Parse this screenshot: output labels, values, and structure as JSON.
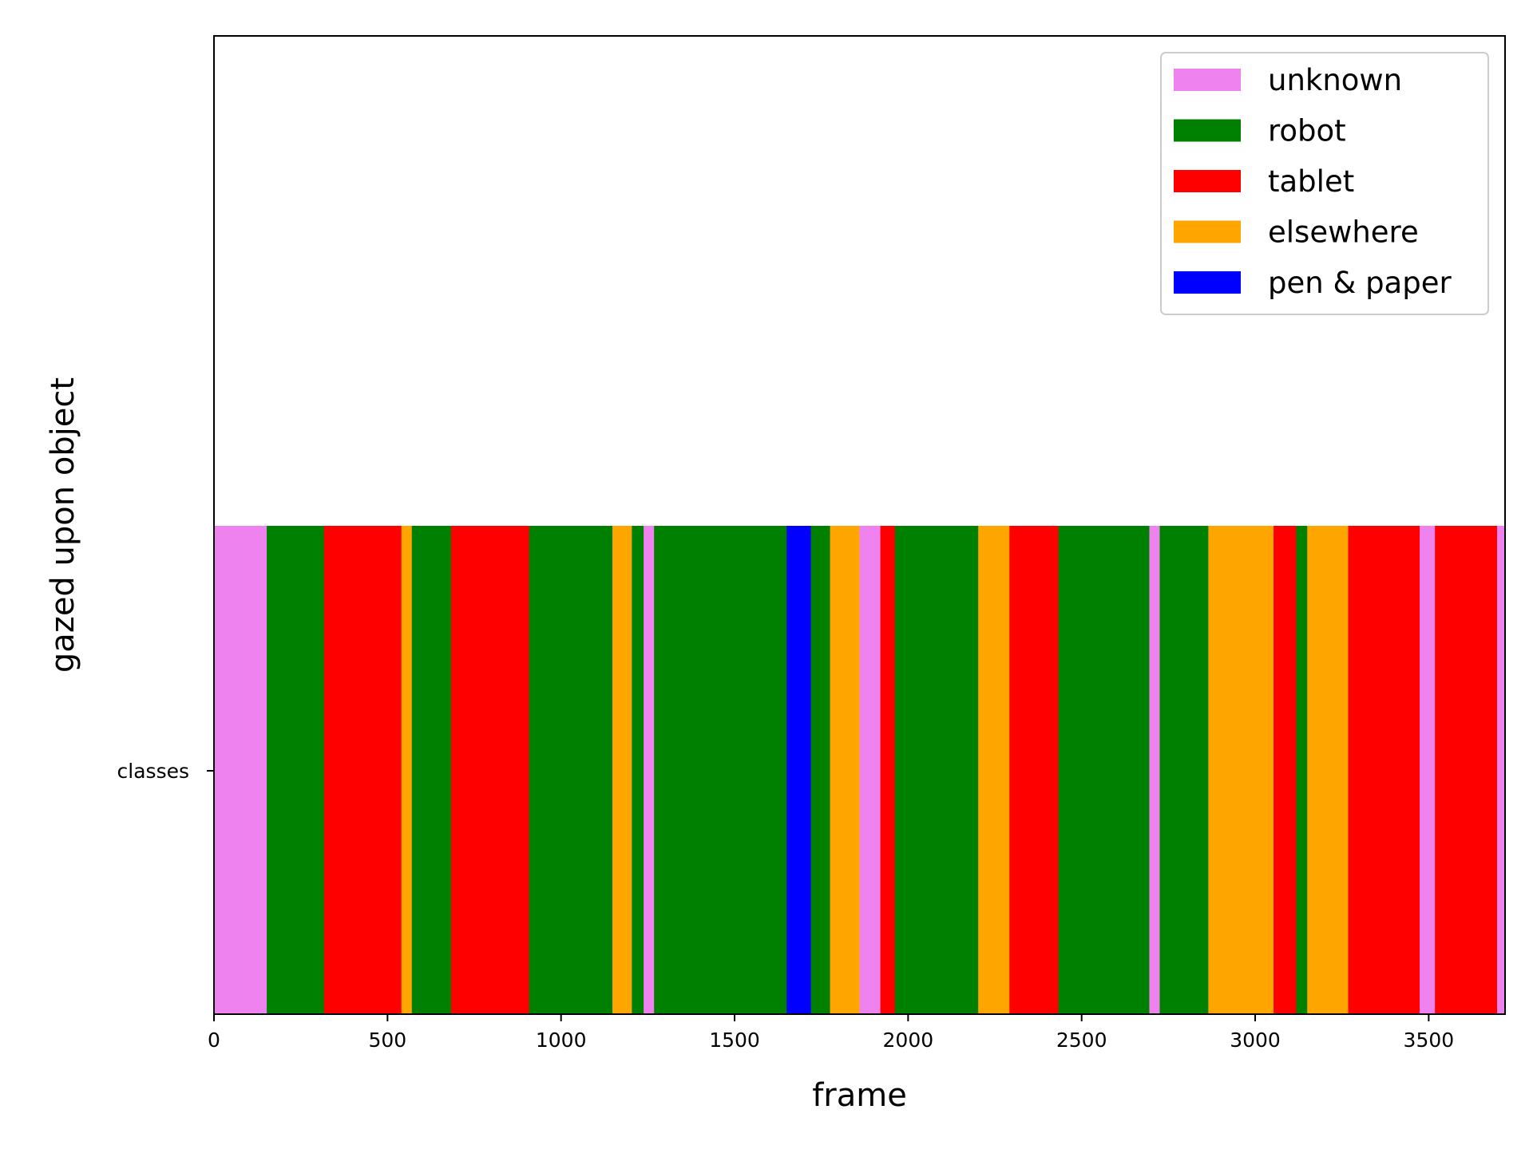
{
  "chart_data": {
    "type": "bar",
    "orientation": "horizontal-timeline",
    "title": "",
    "xlabel": "frame",
    "ylabel": "gazed upon object",
    "xlim": [
      0,
      3720
    ],
    "xticks": [
      0,
      500,
      1000,
      1500,
      2000,
      2500,
      3000,
      3500
    ],
    "ytick_labels": [
      "classes"
    ],
    "grid": false,
    "legend_position": "upper right",
    "classes": [
      {
        "name": "unknown",
        "color": "#EE82EE"
      },
      {
        "name": "robot",
        "color": "#008000"
      },
      {
        "name": "tablet",
        "color": "#FF0000"
      },
      {
        "name": "elsewhere",
        "color": "#FFA500"
      },
      {
        "name": "pen & paper",
        "color": "#0000FF"
      }
    ],
    "segments": [
      {
        "start": 0,
        "end": 152,
        "class": "unknown"
      },
      {
        "start": 152,
        "end": 317,
        "class": "robot"
      },
      {
        "start": 317,
        "end": 540,
        "class": "tablet"
      },
      {
        "start": 540,
        "end": 570,
        "class": "elsewhere"
      },
      {
        "start": 570,
        "end": 683,
        "class": "robot"
      },
      {
        "start": 683,
        "end": 908,
        "class": "tablet"
      },
      {
        "start": 908,
        "end": 1148,
        "class": "robot"
      },
      {
        "start": 1148,
        "end": 1204,
        "class": "elsewhere"
      },
      {
        "start": 1204,
        "end": 1238,
        "class": "robot"
      },
      {
        "start": 1238,
        "end": 1268,
        "class": "unknown"
      },
      {
        "start": 1268,
        "end": 1650,
        "class": "robot"
      },
      {
        "start": 1650,
        "end": 1720,
        "class": "pen & paper"
      },
      {
        "start": 1720,
        "end": 1775,
        "class": "robot"
      },
      {
        "start": 1775,
        "end": 1860,
        "class": "elsewhere"
      },
      {
        "start": 1860,
        "end": 1920,
        "class": "unknown"
      },
      {
        "start": 1920,
        "end": 1962,
        "class": "tablet"
      },
      {
        "start": 1962,
        "end": 2202,
        "class": "robot"
      },
      {
        "start": 2202,
        "end": 2292,
        "class": "elsewhere"
      },
      {
        "start": 2292,
        "end": 2433,
        "class": "tablet"
      },
      {
        "start": 2433,
        "end": 2695,
        "class": "robot"
      },
      {
        "start": 2695,
        "end": 2725,
        "class": "unknown"
      },
      {
        "start": 2725,
        "end": 2865,
        "class": "robot"
      },
      {
        "start": 2865,
        "end": 3053,
        "class": "elsewhere"
      },
      {
        "start": 3053,
        "end": 3118,
        "class": "tablet"
      },
      {
        "start": 3118,
        "end": 3150,
        "class": "robot"
      },
      {
        "start": 3150,
        "end": 3268,
        "class": "elsewhere"
      },
      {
        "start": 3268,
        "end": 3474,
        "class": "tablet"
      },
      {
        "start": 3474,
        "end": 3518,
        "class": "unknown"
      },
      {
        "start": 3518,
        "end": 3697,
        "class": "tablet"
      },
      {
        "start": 3697,
        "end": 3720,
        "class": "unknown"
      }
    ]
  }
}
